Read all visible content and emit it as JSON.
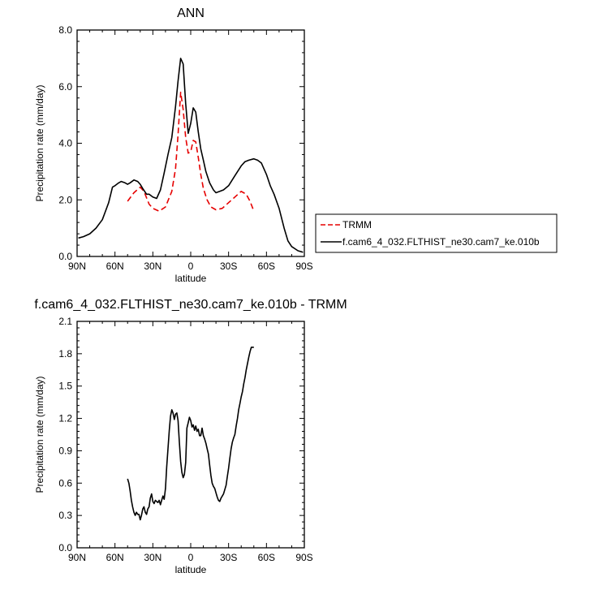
{
  "chart_data": [
    {
      "type": "line",
      "title": "ANN",
      "xlabel": "latitude",
      "ylabel": "Precipitation rate (mm/day)",
      "xlim": [
        90,
        -90
      ],
      "ylim": [
        0,
        8
      ],
      "xticks": [
        90,
        60,
        30,
        0,
        -30,
        -60,
        -90
      ],
      "xtick_labels": [
        "90N",
        "60N",
        "30N",
        "0",
        "30S",
        "60S",
        "90S"
      ],
      "yticks": [
        0,
        2,
        4,
        6,
        8
      ],
      "ytick_labels": [
        "0.0",
        "2.0",
        "4.0",
        "6.0",
        "8.0"
      ],
      "legend_position": "right",
      "series": [
        {
          "name": "TRMM",
          "color": "#e60000",
          "dash": "dashed",
          "x": [
            50,
            45,
            40,
            37,
            33,
            30,
            25,
            20,
            15,
            12,
            10,
            8,
            6,
            4,
            2,
            0,
            -2,
            -4,
            -6,
            -8,
            -10,
            -13,
            -16,
            -20,
            -25,
            -30,
            -35,
            -40,
            -44,
            -47,
            -50
          ],
          "y": [
            1.95,
            2.25,
            2.45,
            2.3,
            1.85,
            1.7,
            1.6,
            1.75,
            2.3,
            3.1,
            4.3,
            5.8,
            5.2,
            4.2,
            3.65,
            3.7,
            4.1,
            4.05,
            3.5,
            2.9,
            2.4,
            2.0,
            1.75,
            1.65,
            1.7,
            1.9,
            2.1,
            2.3,
            2.2,
            1.95,
            1.6
          ]
        },
        {
          "name": "f.cam6_4_032.FLTHIST_ne30.cam7_ke.010b",
          "color": "#000000",
          "dash": "solid",
          "x": [
            89,
            85,
            80,
            75,
            70,
            65,
            62,
            60,
            57,
            55,
            52,
            50,
            48,
            45,
            42,
            40,
            38,
            35,
            33,
            30,
            27,
            24,
            21,
            18,
            15,
            12,
            10,
            8,
            6,
            4,
            2,
            0,
            -2,
            -4,
            -6,
            -8,
            -10,
            -12,
            -15,
            -18,
            -20,
            -23,
            -26,
            -30,
            -35,
            -40,
            -43,
            -46,
            -50,
            -53,
            -56,
            -60,
            -63,
            -66,
            -70,
            -74,
            -77,
            -80,
            -85,
            -89
          ],
          "y": [
            0.65,
            0.7,
            0.8,
            1.0,
            1.3,
            1.9,
            2.45,
            2.5,
            2.6,
            2.65,
            2.6,
            2.55,
            2.6,
            2.7,
            2.65,
            2.55,
            2.4,
            2.2,
            2.2,
            2.1,
            2.05,
            2.35,
            2.95,
            3.6,
            4.2,
            5.3,
            6.2,
            7.0,
            6.8,
            5.4,
            4.35,
            4.7,
            5.25,
            5.1,
            4.4,
            3.8,
            3.4,
            3.0,
            2.6,
            2.35,
            2.25,
            2.3,
            2.35,
            2.5,
            2.85,
            3.2,
            3.35,
            3.4,
            3.45,
            3.4,
            3.3,
            2.9,
            2.5,
            2.2,
            1.7,
            1.0,
            0.55,
            0.35,
            0.2,
            0.15
          ]
        }
      ]
    },
    {
      "type": "line",
      "title": "f.cam6_4_032.FLTHIST_ne30.cam7_ke.010b - TRMM",
      "xlabel": "latitude",
      "ylabel": "Precipitation rate (mm/day)",
      "xlim": [
        90,
        -90
      ],
      "ylim": [
        0,
        2.1
      ],
      "xticks": [
        90,
        60,
        30,
        0,
        -30,
        -60,
        -90
      ],
      "xtick_labels": [
        "90N",
        "60N",
        "30N",
        "0",
        "30S",
        "60S",
        "90S"
      ],
      "yticks": [
        0,
        0.3,
        0.6,
        0.9,
        1.2,
        1.5,
        1.8,
        2.1
      ],
      "ytick_labels": [
        "0.0",
        "0.3",
        "0.6",
        "0.9",
        "1.2",
        "1.5",
        "1.8",
        "2.1"
      ],
      "series": [
        {
          "color": "#000000",
          "dash": "solid",
          "x": [
            50,
            49,
            48,
            47,
            46,
            45,
            44,
            43,
            42,
            41,
            40,
            39,
            38,
            37,
            36,
            35,
            34,
            33,
            32,
            31,
            30,
            29,
            28,
            27,
            26,
            25,
            24,
            23,
            22,
            21,
            20,
            19,
            18,
            17,
            16,
            15,
            14,
            13,
            12,
            11,
            10,
            9,
            8,
            7,
            6,
            5,
            4,
            3,
            2,
            1,
            0,
            -1,
            -2,
            -3,
            -4,
            -5,
            -6,
            -7,
            -8,
            -9,
            -10,
            -11,
            -12,
            -13,
            -14,
            -15,
            -16,
            -17,
            -18,
            -19,
            -20,
            -21,
            -22,
            -23,
            -24,
            -25,
            -26,
            -27,
            -28,
            -29,
            -30,
            -31,
            -32,
            -33,
            -34,
            -35,
            -36,
            -37,
            -38,
            -39,
            -40,
            -41,
            -42,
            -43,
            -44,
            -45,
            -46,
            -47,
            -48,
            -49,
            -50
          ],
          "y": [
            0.64,
            0.6,
            0.53,
            0.44,
            0.38,
            0.33,
            0.3,
            0.33,
            0.31,
            0.31,
            0.26,
            0.3,
            0.36,
            0.38,
            0.33,
            0.31,
            0.36,
            0.38,
            0.46,
            0.5,
            0.43,
            0.41,
            0.44,
            0.43,
            0.42,
            0.44,
            0.4,
            0.44,
            0.48,
            0.45,
            0.55,
            0.75,
            0.92,
            1.09,
            1.22,
            1.28,
            1.25,
            1.19,
            1.24,
            1.25,
            1.18,
            0.98,
            0.8,
            0.7,
            0.65,
            0.68,
            0.79,
            1.11,
            1.16,
            1.21,
            1.18,
            1.12,
            1.14,
            1.09,
            1.13,
            1.08,
            1.1,
            1.04,
            1.04,
            1.11,
            1.04,
            1.01,
            0.97,
            0.92,
            0.87,
            0.77,
            0.67,
            0.6,
            0.57,
            0.55,
            0.51,
            0.47,
            0.44,
            0.43,
            0.46,
            0.48,
            0.5,
            0.54,
            0.58,
            0.66,
            0.74,
            0.83,
            0.92,
            0.98,
            1.02,
            1.05,
            1.13,
            1.2,
            1.28,
            1.34,
            1.4,
            1.45,
            1.52,
            1.58,
            1.65,
            1.71,
            1.77,
            1.82,
            1.86,
            1.86,
            1.86
          ]
        }
      ]
    }
  ]
}
